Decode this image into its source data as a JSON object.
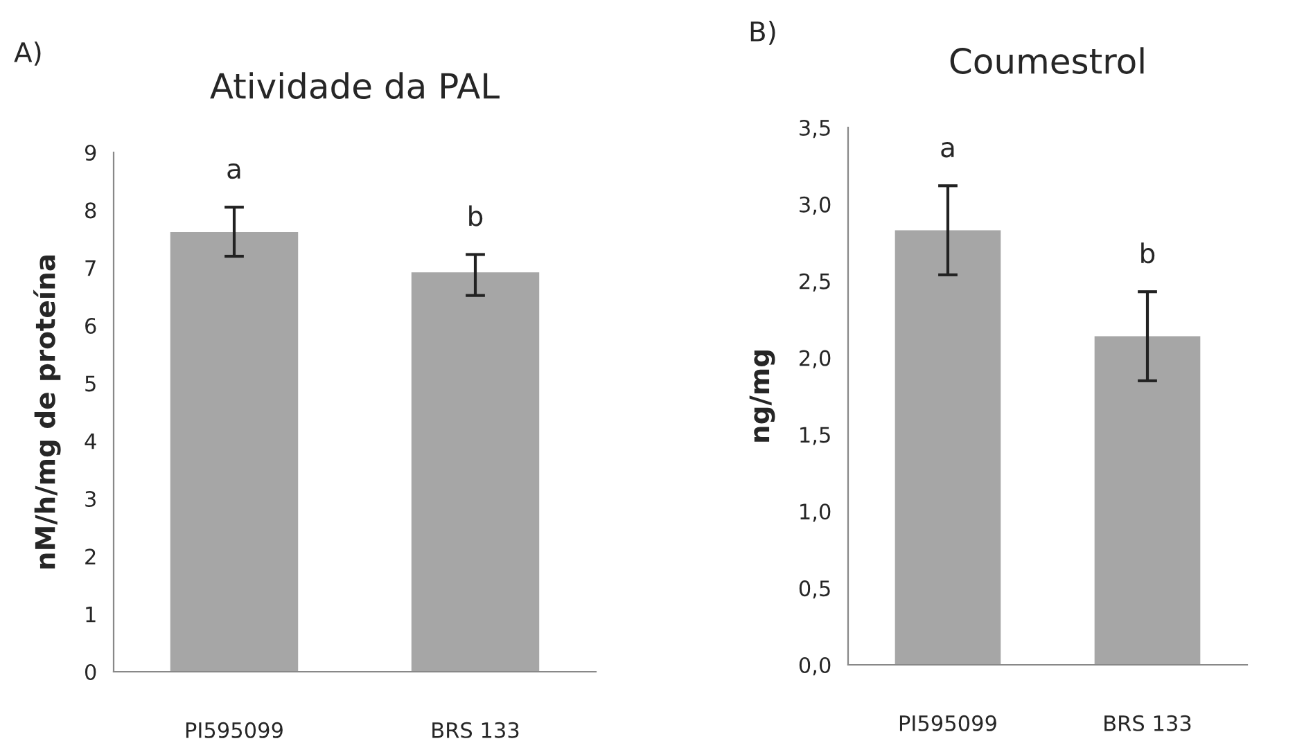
{
  "chart_data": [
    {
      "type": "bar",
      "title": "Atividade da PAL",
      "ylabel": "nM/h/mg de proteína",
      "categories": [
        "PI595099",
        "BRS 133"
      ],
      "values": [
        7.62,
        6.92
      ],
      "errors": [
        [
          7.2,
          8.05
        ],
        [
          6.52,
          7.23
        ]
      ],
      "color": "#a6a6a6",
      "ylim": [
        0,
        9
      ],
      "yticks": [
        0,
        1,
        2,
        3,
        4,
        5,
        6,
        7,
        8,
        9
      ],
      "grid": false,
      "legend": false,
      "annotations": [
        "A)",
        {
          "text": "a",
          "x": "PI595099",
          "y": 8.05
        },
        {
          "text": "b",
          "x": "BRS 133",
          "y": 7.23
        }
      ]
    },
    {
      "type": "bar",
      "title": "Coumestrol",
      "ylabel": "ng/mg",
      "categories": [
        "PI595099",
        "BRS 133"
      ],
      "values": [
        2.83,
        2.14
      ],
      "errors": [
        [
          2.54,
          3.12
        ],
        [
          1.85,
          2.43
        ]
      ],
      "color": "#a6a6a6",
      "ylim": [
        0,
        3.5
      ],
      "yticks": [
        {
          "value": 0,
          "label": "0,0"
        },
        {
          "value": 0.5,
          "label": "0,5"
        },
        {
          "value": 1,
          "label": "1,0"
        },
        {
          "value": 1.5,
          "label": "1,5"
        },
        {
          "value": 2,
          "label": "2,0"
        },
        {
          "value": 2.5,
          "label": "2,5"
        },
        {
          "value": 3,
          "label": "3,0"
        },
        {
          "value": 3.5,
          "label": "3,5"
        }
      ],
      "grid": false,
      "legend": false,
      "annotations": [
        "B)",
        {
          "text": "a",
          "x": "PI595099",
          "y": 3.12
        },
        {
          "text": "b",
          "x": "BRS 133",
          "y": 2.43
        }
      ]
    }
  ]
}
